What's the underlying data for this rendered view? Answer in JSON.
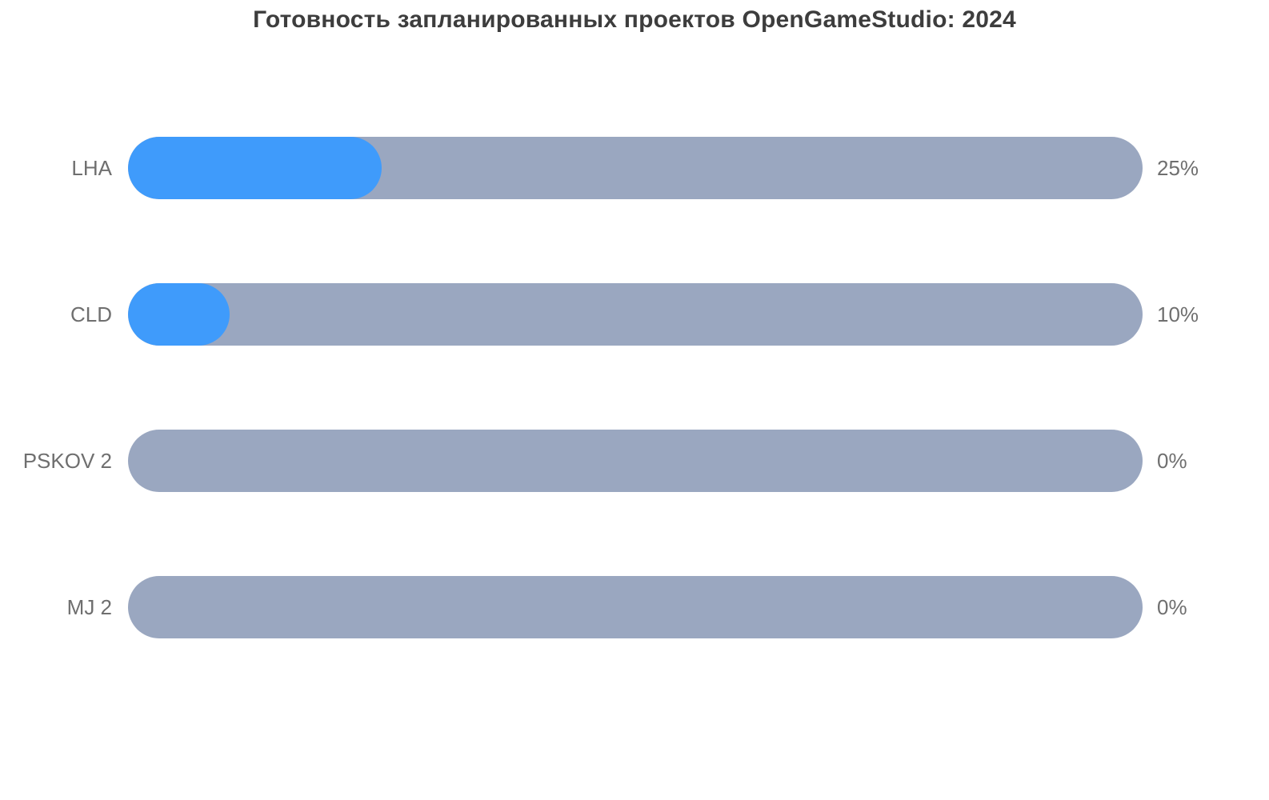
{
  "title": "Готовность запланированных проектов OpenGameStudio: 2024",
  "colors": {
    "fill": "#3F9BFB",
    "track": "#9AA7C0",
    "title_text": "#3D3D3D",
    "label_text": "#6F6F6F",
    "background": "#FFFFFF"
  },
  "chart_data": {
    "type": "bar",
    "orientation": "horizontal",
    "title": "Готовность запланированных проектов OpenGameStudio: 2024",
    "categories": [
      "LHA",
      "CLD",
      "PSKOV 2",
      "MJ 2"
    ],
    "values": [
      25,
      10,
      0,
      0
    ],
    "value_labels": [
      "25%",
      "10%",
      "0%",
      "0%"
    ],
    "xlabel": "",
    "ylabel": "",
    "xlim": [
      0,
      100
    ],
    "grid": false,
    "legend": false,
    "bar_style": "rounded-pill-progress",
    "value_label_position": "right-of-bar",
    "category_label_position": "left-of-bar"
  }
}
